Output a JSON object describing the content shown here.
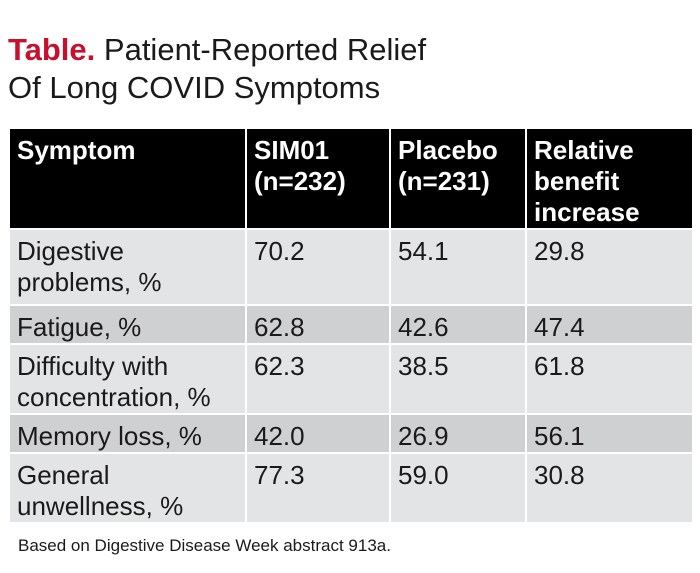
{
  "title": {
    "lead": "Table.",
    "line1_rest": "Patient-Reported Relief",
    "line2": "Of Long COVID Symptoms"
  },
  "table": {
    "headers": [
      [
        "Symptom"
      ],
      [
        "SIM01",
        "(n=232)"
      ],
      [
        "Placebo",
        "(n=231)"
      ],
      [
        "Relative",
        "benefit",
        "increase"
      ]
    ],
    "rows": [
      {
        "symptom": [
          "Digestive",
          "problems, %"
        ],
        "sim01": "70.2",
        "placebo": "54.1",
        "relative": "29.8"
      },
      {
        "symptom": [
          "Fatigue, %"
        ],
        "sim01": "62.8",
        "placebo": "42.6",
        "relative": "47.4"
      },
      {
        "symptom": [
          "Difficulty with",
          "concentration, %"
        ],
        "sim01": "62.3",
        "placebo": "38.5",
        "relative": "61.8"
      },
      {
        "symptom": [
          "Memory loss, %"
        ],
        "sim01": "42.0",
        "placebo": "26.9",
        "relative": "56.1"
      },
      {
        "symptom": [
          "General",
          "unwellness, %"
        ],
        "sim01": "77.3",
        "placebo": "59.0",
        "relative": "30.8"
      }
    ]
  },
  "footnote": "Based on Digestive Disease Week abstract 913a.",
  "colors": {
    "accent": "#c8102e",
    "header_bg": "#000000",
    "row_light": "#e3e4e5",
    "row_dark": "#cfd0d1"
  }
}
